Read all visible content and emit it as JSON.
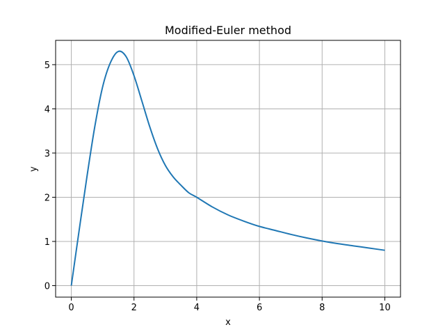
{
  "chart_data": {
    "type": "line",
    "title": "Modified-Euler method",
    "xlabel": "x",
    "ylabel": "y",
    "xlim": [
      -0.5,
      10.5
    ],
    "ylim": [
      -0.26,
      5.55
    ],
    "xticks": [
      0,
      2,
      4,
      6,
      8,
      10
    ],
    "yticks": [
      0,
      1,
      2,
      3,
      4,
      5
    ],
    "xtick_labels": [
      "0",
      "2",
      "4",
      "6",
      "8",
      "10"
    ],
    "ytick_labels": [
      "0",
      "1",
      "2",
      "3",
      "4",
      "5"
    ],
    "grid": true,
    "legend": "none",
    "series": [
      {
        "color": "#1f77b4",
        "x": [
          0,
          0.25,
          0.5,
          0.75,
          1.0,
          1.25,
          1.5,
          1.75,
          2.0,
          2.25,
          2.5,
          2.75,
          3.0,
          3.25,
          3.5,
          3.75,
          4.0,
          4.5,
          5.0,
          5.5,
          6.0,
          6.5,
          7.0,
          7.5,
          8.0,
          8.5,
          9.0,
          9.5,
          10.0
        ],
        "y": [
          0,
          1.25,
          2.47,
          3.6,
          4.5,
          5.05,
          5.3,
          5.18,
          4.75,
          4.18,
          3.6,
          3.1,
          2.72,
          2.46,
          2.27,
          2.1,
          2.0,
          1.78,
          1.6,
          1.46,
          1.34,
          1.25,
          1.16,
          1.08,
          1.01,
          0.95,
          0.9,
          0.85,
          0.8
        ]
      }
    ]
  }
}
